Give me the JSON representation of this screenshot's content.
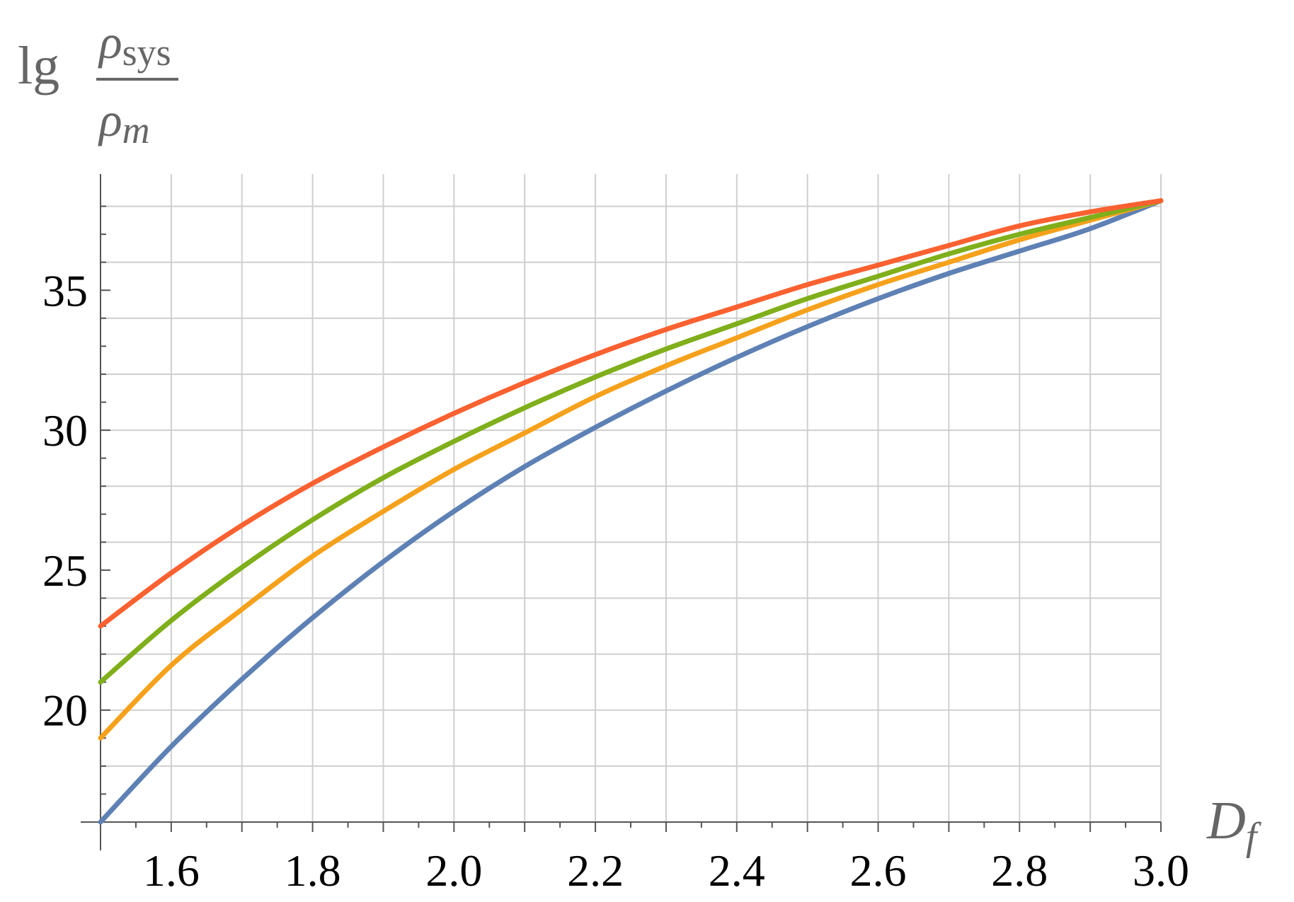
{
  "chart_data": {
    "type": "line",
    "xlabel_main": "D",
    "xlabel_sub": "f",
    "ylabel_prefix": "lg",
    "ylabel_num_main": "ρ",
    "ylabel_num_sub": "sys",
    "ylabel_den_main": "ρ",
    "ylabel_den_sub": "m",
    "xlim": [
      1.5,
      3.0
    ],
    "ylim": [
      16,
      39
    ],
    "x_ticks": [
      1.6,
      1.8,
      2.0,
      2.2,
      2.4,
      2.6,
      2.8,
      3.0
    ],
    "x_tick_labels": [
      "1.6",
      "1.8",
      "2.0",
      "2.2",
      "2.4",
      "2.6",
      "2.8",
      "3.0"
    ],
    "y_ticks": [
      20,
      25,
      30,
      35
    ],
    "y_tick_labels": [
      "20",
      "25",
      "30",
      "35"
    ],
    "grid": true,
    "series": [
      {
        "color": "#5E81B5",
        "x": [
          1.5,
          1.6,
          1.7,
          1.8,
          1.9,
          2.0,
          2.1,
          2.2,
          2.3,
          2.4,
          2.5,
          2.6,
          2.7,
          2.8,
          2.9,
          3.0
        ],
        "values": [
          16.0,
          18.7,
          21.1,
          23.3,
          25.3,
          27.1,
          28.7,
          30.1,
          31.4,
          32.6,
          33.7,
          34.7,
          35.6,
          36.4,
          37.2,
          38.2
        ]
      },
      {
        "color": "#F5A11B",
        "x": [
          1.5,
          1.6,
          1.7,
          1.8,
          1.9,
          2.0,
          2.1,
          2.2,
          2.3,
          2.4,
          2.5,
          2.6,
          2.7,
          2.8,
          2.9,
          3.0
        ],
        "values": [
          19.0,
          21.6,
          23.6,
          25.5,
          27.1,
          28.6,
          29.9,
          31.2,
          32.3,
          33.3,
          34.3,
          35.2,
          36.0,
          36.8,
          37.5,
          38.2
        ]
      },
      {
        "color": "#7FAF1B",
        "x": [
          1.5,
          1.6,
          1.7,
          1.8,
          1.9,
          2.0,
          2.1,
          2.2,
          2.3,
          2.4,
          2.5,
          2.6,
          2.7,
          2.8,
          2.9,
          3.0
        ],
        "values": [
          21.0,
          23.2,
          25.1,
          26.8,
          28.3,
          29.6,
          30.8,
          31.9,
          32.9,
          33.8,
          34.7,
          35.5,
          36.3,
          37.0,
          37.6,
          38.2
        ]
      },
      {
        "color": "#FA6130",
        "x": [
          1.5,
          1.6,
          1.7,
          1.8,
          1.9,
          2.0,
          2.1,
          2.2,
          2.3,
          2.4,
          2.5,
          2.6,
          2.7,
          2.8,
          2.9,
          3.0
        ],
        "values": [
          23.0,
          24.9,
          26.6,
          28.1,
          29.4,
          30.6,
          31.7,
          32.7,
          33.6,
          34.4,
          35.2,
          35.9,
          36.6,
          37.3,
          37.8,
          38.2
        ]
      }
    ]
  }
}
